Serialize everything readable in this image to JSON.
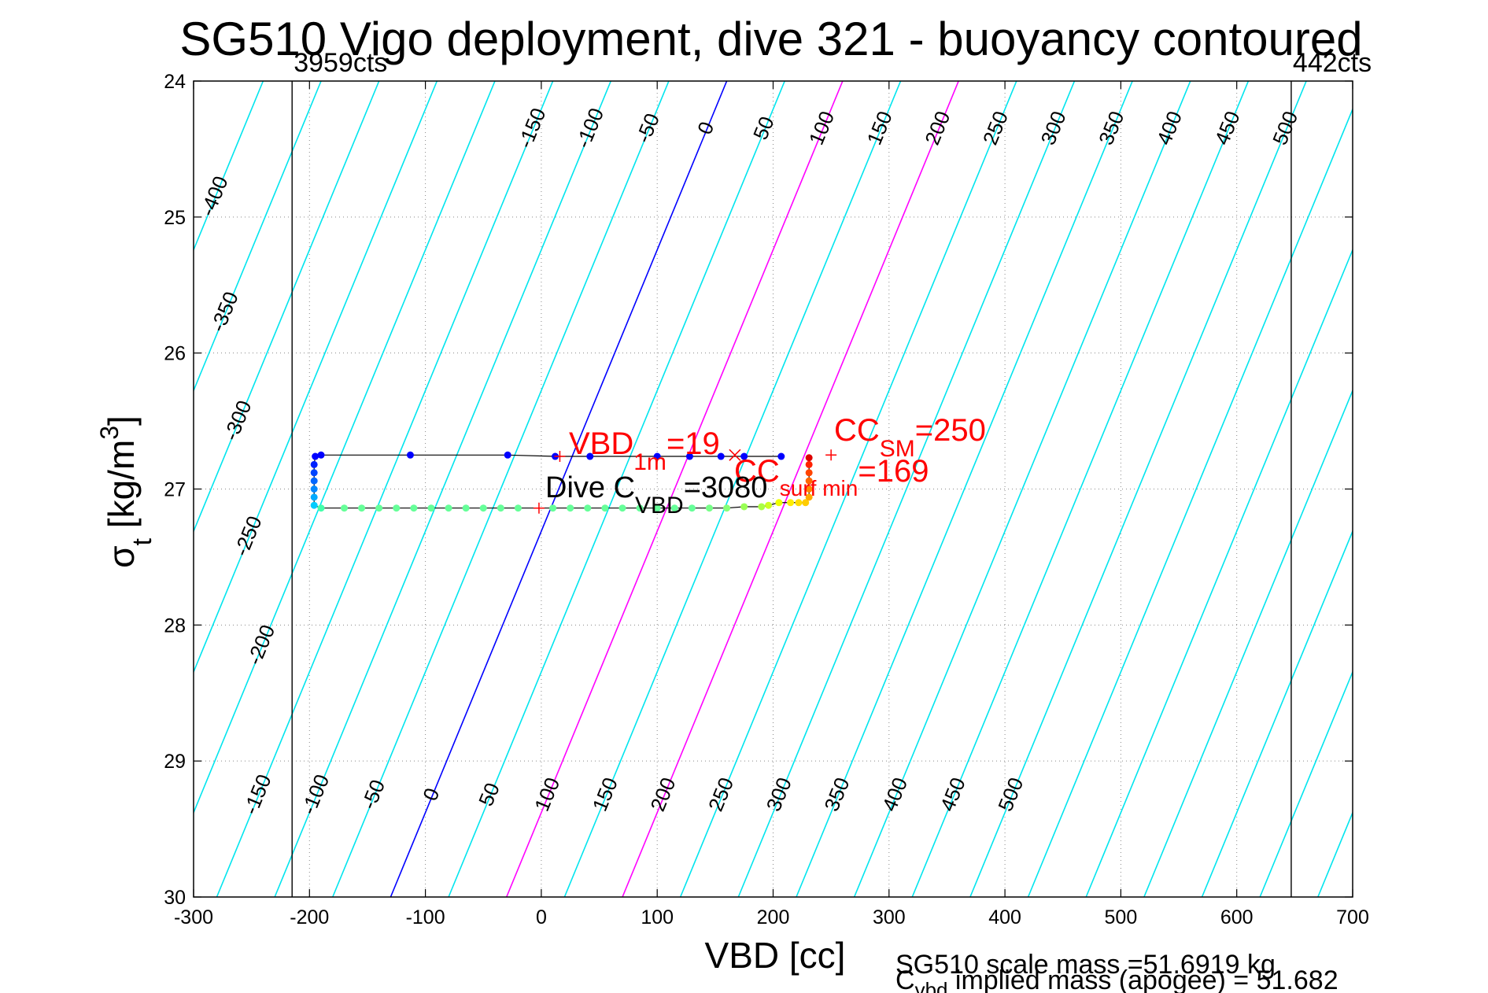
{
  "chart_data": {
    "type": "scatter",
    "title": "SG510 Vigo deployment, dive 321 - buoyancy contoured",
    "xlabel": "VBD [cc]",
    "ylabel": {
      "base": "σ",
      "sub": "t",
      "unit_pre": " [kg/m",
      "sup": "3",
      "unit_post": "]"
    },
    "xlim": [
      -300,
      700
    ],
    "ylim": [
      24,
      30
    ],
    "y_reversed": true,
    "grid": true,
    "x_ticks": [
      "-300",
      "-200",
      "-100",
      "0",
      "100",
      "200",
      "300",
      "400",
      "500",
      "600",
      "700"
    ],
    "y_ticks": [
      "24",
      "25",
      "26",
      "27",
      "28",
      "29",
      "30"
    ],
    "vertical_limits": [
      {
        "x": -215,
        "label": "3959cts"
      },
      {
        "x": 647,
        "label": "442cts"
      }
    ],
    "contour_line_x_at_sigma": [
      {
        "sigma": 24,
        "x": 160
      },
      {
        "sigma": 30,
        "x": -130
      }
    ],
    "contours": [
      {
        "value": -400,
        "label": "-400",
        "color": "#00e5ee"
      },
      {
        "value": -350,
        "label": "-350",
        "color": "#00e5ee"
      },
      {
        "value": -300,
        "label": "-300",
        "color": "#00e5ee"
      },
      {
        "value": -250,
        "label": "-250",
        "color": "#00e5ee"
      },
      {
        "value": -200,
        "label": "-200",
        "color": "#00e5ee"
      },
      {
        "value": -150,
        "label": "-150",
        "color": "#00e5ee"
      },
      {
        "value": -100,
        "label": "-100",
        "color": "#00e5ee"
      },
      {
        "value": -50,
        "label": "-50",
        "color": "#00e5ee"
      },
      {
        "value": 0,
        "label": "0",
        "color": "#0000ff"
      },
      {
        "value": 50,
        "label": "50",
        "color": "#00e5ee"
      },
      {
        "value": 100,
        "label": "100",
        "color": "#ff00ff"
      },
      {
        "value": 150,
        "label": "150",
        "color": "#00e5ee"
      },
      {
        "value": 200,
        "label": "200",
        "color": "#ff00ff"
      },
      {
        "value": 250,
        "label": "250",
        "color": "#00e5ee"
      },
      {
        "value": 300,
        "label": "300",
        "color": "#00e5ee"
      },
      {
        "value": 350,
        "label": "350",
        "color": "#00e5ee"
      },
      {
        "value": 400,
        "label": "400",
        "color": "#00e5ee"
      },
      {
        "value": 450,
        "label": "450",
        "color": "#00e5ee"
      },
      {
        "value": 500,
        "label": "500",
        "color": "#00e5ee"
      },
      {
        "value": 550,
        "label": "",
        "color": "#00e5ee"
      },
      {
        "value": 600,
        "label": "",
        "color": "#00e5ee"
      },
      {
        "value": 650,
        "label": "",
        "color": "#00e5ee"
      },
      {
        "value": 700,
        "label": "",
        "color": "#00e5ee"
      },
      {
        "value": 750,
        "label": "",
        "color": "#00e5ee"
      },
      {
        "value": 800,
        "label": "",
        "color": "#00e5ee"
      },
      {
        "value": 850,
        "label": "",
        "color": "#00e5ee"
      },
      {
        "value": 900,
        "label": "",
        "color": "#00e5ee"
      },
      {
        "value": 950,
        "label": "",
        "color": "#00e5ee"
      },
      {
        "value": 1000,
        "label": "",
        "color": "#00e5ee"
      }
    ],
    "top_labeled_contours": [
      -400,
      -150,
      -100,
      -50,
      0,
      50,
      100,
      150,
      200,
      250,
      300,
      350,
      400,
      450,
      500
    ],
    "bottom_labeled_contours": [
      -150,
      -100,
      -50,
      0,
      50,
      100,
      150,
      200,
      250,
      300,
      350,
      400,
      450,
      500
    ],
    "left_labeled_contours": [
      -400,
      -350,
      -300,
      -250,
      -200
    ],
    "descent_points": [
      {
        "x": 207,
        "y": 26.76,
        "color": "#0000ff"
      },
      {
        "x": 175,
        "y": 26.76,
        "color": "#0000ff"
      },
      {
        "x": 155,
        "y": 26.76,
        "color": "#0000ff"
      },
      {
        "x": 128,
        "y": 26.76,
        "color": "#0000ff"
      },
      {
        "x": 100,
        "y": 26.76,
        "color": "#0000ff"
      },
      {
        "x": 42,
        "y": 26.76,
        "color": "#0000ff"
      },
      {
        "x": 12,
        "y": 26.76,
        "color": "#0000ff"
      },
      {
        "x": -29,
        "y": 26.75,
        "color": "#0000ff"
      },
      {
        "x": -113,
        "y": 26.75,
        "color": "#0000ff"
      },
      {
        "x": -190,
        "y": 26.75,
        "color": "#0000ff"
      },
      {
        "x": -195,
        "y": 26.76,
        "color": "#0000ff"
      },
      {
        "x": -196,
        "y": 26.82,
        "color": "#0022ff"
      },
      {
        "x": -196,
        "y": 26.88,
        "color": "#0044ff"
      },
      {
        "x": -196,
        "y": 26.94,
        "color": "#0066ff"
      },
      {
        "x": -196,
        "y": 27.0,
        "color": "#0088ff"
      },
      {
        "x": -196,
        "y": 27.06,
        "color": "#00aaff"
      },
      {
        "x": -196,
        "y": 27.12,
        "color": "#00ccff"
      }
    ],
    "ascent_points": [
      {
        "x": -190,
        "y": 27.14,
        "color": "#44ffaa"
      },
      {
        "x": -170,
        "y": 27.14,
        "color": "#66ff99"
      },
      {
        "x": -155,
        "y": 27.14,
        "color": "#66ff99"
      },
      {
        "x": -140,
        "y": 27.14,
        "color": "#66ff99"
      },
      {
        "x": -125,
        "y": 27.14,
        "color": "#66ff99"
      },
      {
        "x": -110,
        "y": 27.14,
        "color": "#66ff99"
      },
      {
        "x": -95,
        "y": 27.14,
        "color": "#66ff99"
      },
      {
        "x": -80,
        "y": 27.14,
        "color": "#66ff99"
      },
      {
        "x": -65,
        "y": 27.14,
        "color": "#66ff99"
      },
      {
        "x": -50,
        "y": 27.14,
        "color": "#66ff99"
      },
      {
        "x": -35,
        "y": 27.14,
        "color": "#66ff99"
      },
      {
        "x": -20,
        "y": 27.14,
        "color": "#66ff99"
      },
      {
        "x": 10,
        "y": 27.14,
        "color": "#66ff99"
      },
      {
        "x": 25,
        "y": 27.14,
        "color": "#66ff99"
      },
      {
        "x": 40,
        "y": 27.14,
        "color": "#66ff99"
      },
      {
        "x": 55,
        "y": 27.14,
        "color": "#66ff99"
      },
      {
        "x": 70,
        "y": 27.14,
        "color": "#66ff99"
      },
      {
        "x": 85,
        "y": 27.14,
        "color": "#66ff99"
      },
      {
        "x": 100,
        "y": 27.14,
        "color": "#66ff99"
      },
      {
        "x": 115,
        "y": 27.14,
        "color": "#66ff99"
      },
      {
        "x": 130,
        "y": 27.14,
        "color": "#66ff99"
      },
      {
        "x": 145,
        "y": 27.14,
        "color": "#77ff88"
      },
      {
        "x": 160,
        "y": 27.14,
        "color": "#88ff77"
      },
      {
        "x": 175,
        "y": 27.13,
        "color": "#99ff55"
      },
      {
        "x": 190,
        "y": 27.13,
        "color": "#aaff44"
      },
      {
        "x": 196,
        "y": 27.12,
        "color": "#ccff22"
      },
      {
        "x": 205,
        "y": 27.1,
        "color": "#eeff00"
      },
      {
        "x": 215,
        "y": 27.1,
        "color": "#ffee00"
      },
      {
        "x": 222,
        "y": 27.1,
        "color": "#ffdd00"
      },
      {
        "x": 228,
        "y": 27.1,
        "color": "#ffcc00"
      },
      {
        "x": 231,
        "y": 27.06,
        "color": "#ffaa00"
      },
      {
        "x": 231,
        "y": 27.0,
        "color": "#ff8800"
      },
      {
        "x": 231,
        "y": 26.94,
        "color": "#ff6600"
      },
      {
        "x": 231,
        "y": 26.88,
        "color": "#ff4400"
      },
      {
        "x": 231,
        "y": 26.82,
        "color": "#ff2200"
      },
      {
        "x": 231,
        "y": 26.77,
        "color": "#dd0000"
      }
    ],
    "line_color": "#000000",
    "markers": [
      {
        "x": 16,
        "y": 26.76,
        "symbol": "+"
      },
      {
        "x": 167,
        "y": 26.75,
        "symbol": "x"
      },
      {
        "x": 250,
        "y": 26.75,
        "symbol": "+"
      },
      {
        "x": -2,
        "y": 27.14,
        "symbol": "+"
      }
    ],
    "annotations": {
      "vbd_1m": {
        "main": "VBD",
        "sub": "1m",
        "post": "=19",
        "color": "#ff0000"
      },
      "cc_surf_min": {
        "main": "CC",
        "sub": "surf min",
        "post": "=169",
        "color": "#ff0000"
      },
      "cc_sm": {
        "main": "CC",
        "sub": "SM",
        "post": "=250",
        "color": "#ff0000"
      },
      "dive_cvbd": {
        "main": "Dive C",
        "sub": "VBD",
        "post": "=3080",
        "color": "#000000"
      }
    },
    "footer": {
      "scale_mass": "SG510 scale mass =51.6919 kg",
      "implied_main": "C",
      "implied_sub": "vbd",
      "implied_post": " implied mass (apogee) = 51.682"
    }
  }
}
